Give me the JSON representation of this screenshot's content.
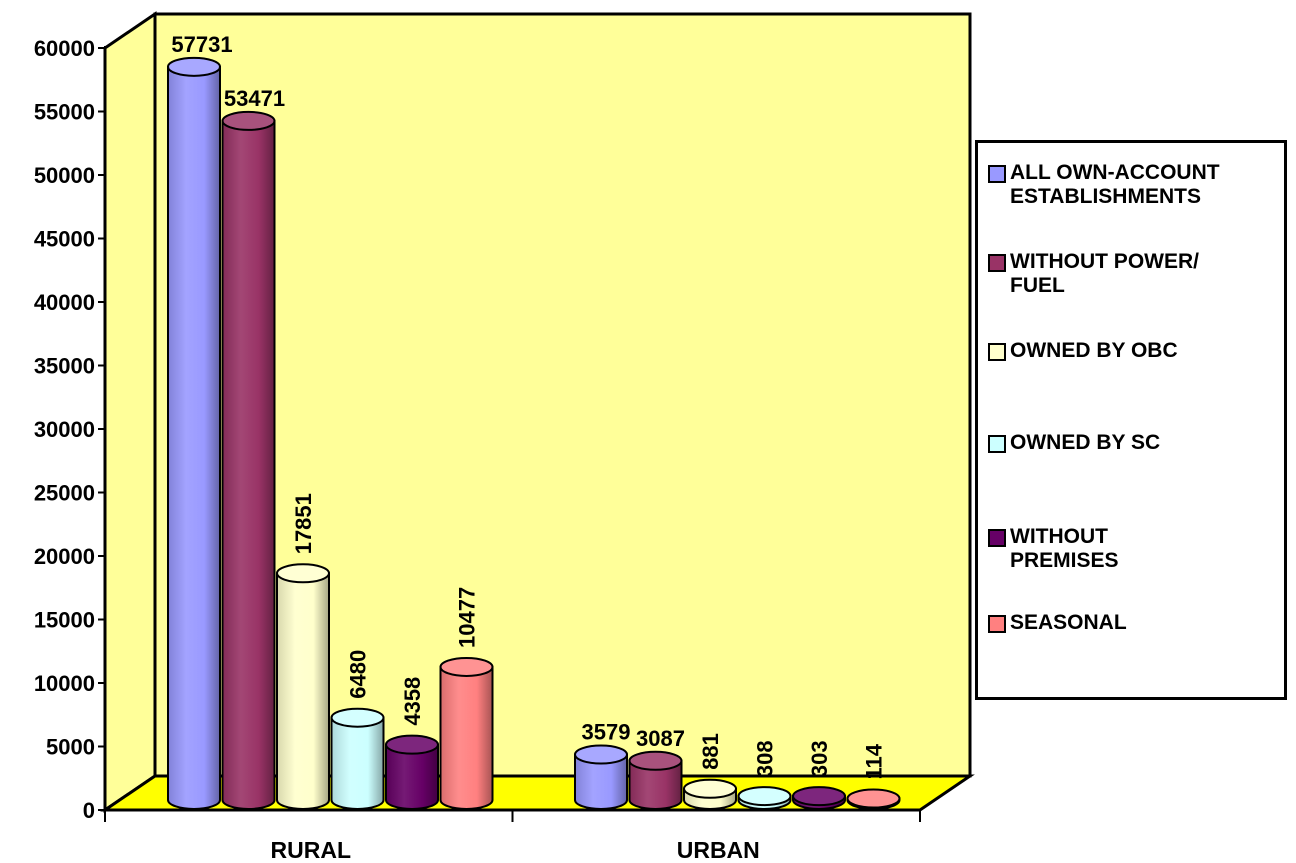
{
  "chart_data": {
    "type": "bar",
    "title": "",
    "xlabel": "",
    "ylabel": "",
    "categories": [
      "RURAL",
      "URBAN"
    ],
    "ylim": [
      0,
      60000
    ],
    "yticks": [
      0,
      5000,
      10000,
      15000,
      20000,
      25000,
      30000,
      35000,
      40000,
      45000,
      50000,
      55000,
      60000
    ],
    "legend_position": "right",
    "bar_shape": "3d-cylinder",
    "series": [
      {
        "name": "ALL OWN-ACCOUNT\nESTABLISHMENTS",
        "color": "#9999ff",
        "values": [
          57731,
          3579
        ],
        "labels": [
          "57731",
          "3579"
        ]
      },
      {
        "name": "WITHOUT POWER/\nFUEL",
        "color": "#993366",
        "values": [
          53471,
          3087
        ],
        "labels": [
          "53471",
          "3087"
        ]
      },
      {
        "name": "OWNED BY OBC",
        "color": "#ffffcc",
        "values": [
          17851,
          881
        ],
        "labels": [
          "17851",
          "881"
        ]
      },
      {
        "name": "OWNED BY SC",
        "color": "#ccffff",
        "values": [
          6480,
          308
        ],
        "labels": [
          "6480",
          "308"
        ]
      },
      {
        "name": "WITHOUT\nPREMISES",
        "color": "#660066",
        "values": [
          4358,
          303
        ],
        "labels": [
          "4358",
          "303"
        ]
      },
      {
        "name": "SEASONAL",
        "color": "#ff8080",
        "values": [
          10477,
          114
        ],
        "labels": [
          "10477",
          "114"
        ]
      }
    ],
    "colors": {
      "wall": "#ffff99",
      "floor": "#ffff00"
    }
  }
}
